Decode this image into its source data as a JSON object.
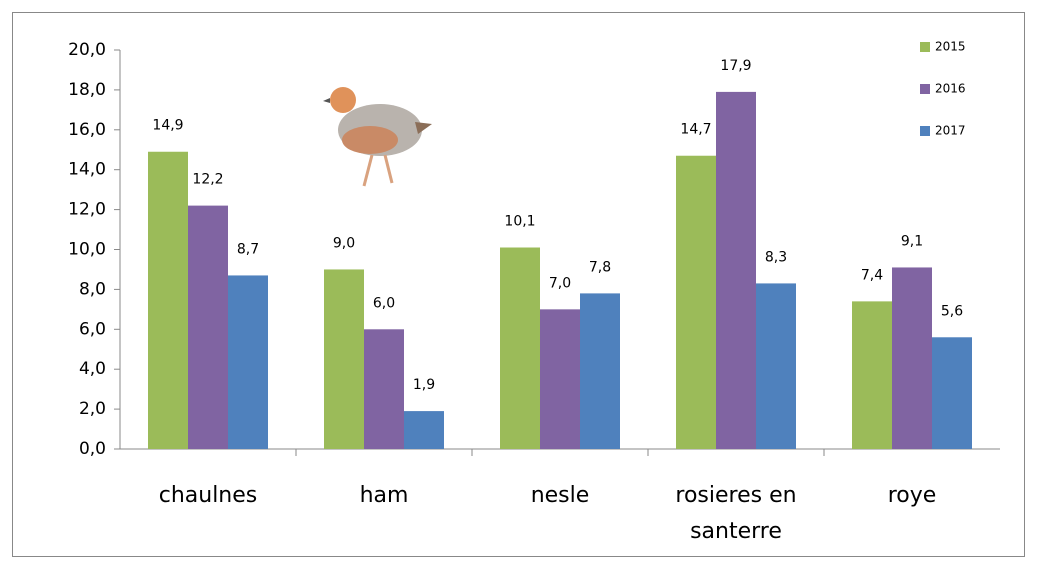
{
  "chart_data": {
    "type": "bar",
    "categories": [
      "chaulnes",
      "ham",
      "nesle",
      "rosieres en santerre",
      "roye"
    ],
    "series": [
      {
        "name": "2015",
        "color": "#9bbb59",
        "values": [
          14.9,
          9.0,
          10.1,
          14.7,
          7.4
        ],
        "value_labels": [
          "14,9",
          "9,0",
          "10,1",
          "14,7",
          "7,4"
        ]
      },
      {
        "name": "2016",
        "color": "#8064a2",
        "values": [
          12.2,
          6.0,
          7.0,
          17.9,
          9.1
        ],
        "value_labels": [
          "12,2",
          "6,0",
          "7,0",
          "17,9",
          "9,1"
        ]
      },
      {
        "name": "2017",
        "color": "#4f81bd",
        "values": [
          8.7,
          1.9,
          7.8,
          8.3,
          5.6
        ],
        "value_labels": [
          "8,7",
          "1,9",
          "7,8",
          "8,3",
          "5,6"
        ]
      }
    ],
    "ylim": [
      0,
      20
    ],
    "yticks": [
      {
        "value": 0,
        "label": "0,0"
      },
      {
        "value": 2,
        "label": "2,0"
      },
      {
        "value": 4,
        "label": "4,0"
      },
      {
        "value": 6,
        "label": "6,0"
      },
      {
        "value": 8,
        "label": "8,0"
      },
      {
        "value": 10,
        "label": "10,0"
      },
      {
        "value": 12,
        "label": "12,0"
      },
      {
        "value": 14,
        "label": "14,0"
      },
      {
        "value": 16,
        "label": "16,0"
      },
      {
        "value": 18,
        "label": "18,0"
      },
      {
        "value": 20,
        "label": "20,0"
      }
    ],
    "grid": false,
    "legend": "top-right"
  }
}
